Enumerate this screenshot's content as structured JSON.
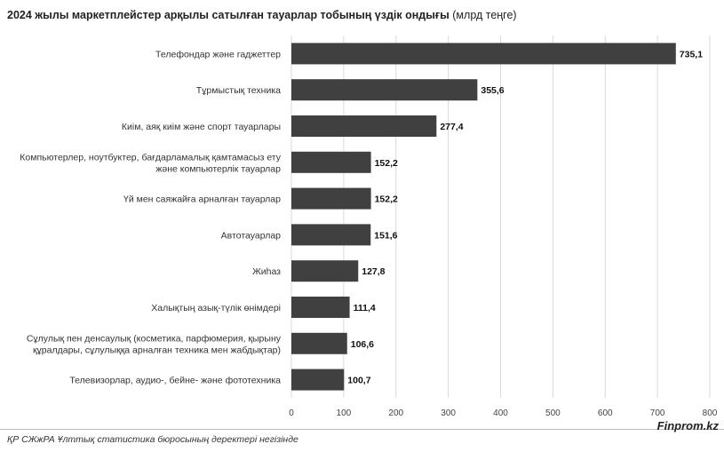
{
  "header": {
    "title_bold": "2024 жылы маркетплейстер арқылы сатылған тауарлар тобының үздік ондығы",
    "title_unit": "(млрд теңге)"
  },
  "chart_data": {
    "type": "bar",
    "orientation": "horizontal",
    "title": "2024 жылы маркетплейстер арқылы сатылған тауарлар тобының үздік ондығы (млрд теңге)",
    "categories": [
      [
        "Телефондар және гаджеттер"
      ],
      [
        "Тұрмыстық техника"
      ],
      [
        "Киім, аяқ киім және спорт тауарлары"
      ],
      [
        "Компьютерлер, ноутбуктер, бағдарламалық қамтамасыз ету",
        "және компьютерлік тауарлар"
      ],
      [
        "Үй мен саяжайға арналған тауарлар"
      ],
      [
        "Автотауарлар"
      ],
      [
        "Жиһаз"
      ],
      [
        "Халықтың азық-түлік өнімдері"
      ],
      [
        "Сұлулық пен денсаулық (косметика, парфюмерия, қырыну",
        "құралдары, сұлулыққа арналған техника мен жабдықтар)"
      ],
      [
        "Телевизорлар, аудио-, бейне- және фототехника"
      ]
    ],
    "values": [
      735.1,
      355.6,
      277.4,
      152.2,
      152.2,
      151.6,
      127.8,
      111.4,
      106.6,
      100.7
    ],
    "value_labels": [
      "735,1",
      "355,6",
      "277,4",
      "152,2",
      "152,2",
      "151,6",
      "127,8",
      "111,4",
      "106,6",
      "100,7"
    ],
    "xlim": [
      0,
      800
    ],
    "xticks": [
      0,
      100,
      200,
      300,
      400,
      500,
      600,
      700,
      800
    ],
    "xlabel": "",
    "ylabel": "",
    "grid": true,
    "bar_color": "#404040",
    "grid_color": "#d9d9d9"
  },
  "footer": {
    "source": "ҚР СЖжРА Ұлттық статистика бюросының деректері негізінде",
    "brand": "Finprom.kz"
  }
}
